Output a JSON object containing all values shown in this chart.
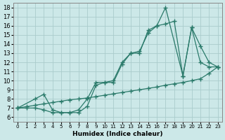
{
  "xlabel": "Humidex (Indice chaleur)",
  "bg_color": "#cce8e8",
  "grid_color": "#aacccc",
  "line_color": "#2a7a6a",
  "marker": "+",
  "marker_size": 4,
  "line_width": 0.9,
  "xlim": [
    -0.5,
    23.5
  ],
  "ylim": [
    5.5,
    18.5
  ],
  "xticks": [
    0,
    1,
    2,
    3,
    4,
    5,
    6,
    7,
    8,
    9,
    10,
    11,
    12,
    13,
    14,
    15,
    16,
    17,
    18,
    19,
    20,
    21,
    22,
    23
  ],
  "yticks": [
    6,
    7,
    8,
    9,
    10,
    11,
    12,
    13,
    14,
    15,
    16,
    17,
    18
  ],
  "series1_x": [
    0,
    1,
    2,
    3,
    4,
    5,
    6,
    7,
    8,
    9,
    10,
    11,
    12,
    13,
    14,
    15,
    16,
    17,
    19,
    20,
    21,
    22,
    23
  ],
  "series1_y": [
    7,
    7,
    7,
    6.8,
    6.5,
    6.5,
    6.5,
    6.5,
    7.2,
    9.5,
    9.8,
    9.8,
    11.8,
    13.0,
    13.0,
    15.5,
    16.0,
    18.0,
    10.5,
    15.8,
    12.0,
    11.5,
    11.5
  ],
  "series2_x": [
    0,
    2,
    3,
    4,
    5,
    6,
    7,
    8,
    9,
    10,
    11,
    12,
    13,
    14,
    15,
    16,
    17,
    18,
    19,
    20,
    21,
    22,
    23
  ],
  "series2_y": [
    7,
    8.0,
    8.5,
    6.8,
    6.5,
    6.5,
    6.8,
    8.0,
    9.8,
    9.8,
    10.0,
    12.0,
    13.0,
    13.2,
    15.2,
    16.0,
    16.2,
    16.5,
    10.5,
    15.8,
    13.8,
    12.0,
    11.5
  ],
  "series3_x": [
    0,
    1,
    2,
    3,
    4,
    5,
    6,
    7,
    8,
    9,
    10,
    11,
    12,
    13,
    14,
    15,
    16,
    17,
    18,
    19,
    20,
    21,
    22,
    23
  ],
  "series3_y": [
    7,
    7.15,
    7.3,
    7.45,
    7.6,
    7.75,
    7.9,
    8.0,
    8.1,
    8.25,
    8.4,
    8.55,
    8.7,
    8.85,
    9.0,
    9.15,
    9.3,
    9.5,
    9.65,
    9.8,
    10.0,
    10.2,
    10.8,
    11.5
  ]
}
